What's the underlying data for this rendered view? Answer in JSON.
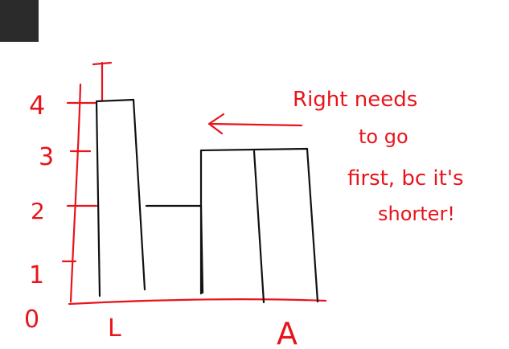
{
  "toolbar": {
    "tool_icon": "dark-square-icon"
  },
  "whiteboard": {
    "y_labels": [
      "4",
      "3",
      "2",
      "1",
      "0"
    ],
    "x_labels": [
      "L",
      "A"
    ],
    "top_label": "T",
    "note_lines": [
      "Right needs",
      "to go",
      "first, bc it's",
      "shorter!"
    ],
    "colors": {
      "annotation": "#e8141b",
      "drawing": "#111111",
      "tool": "#2b2b2b"
    }
  }
}
